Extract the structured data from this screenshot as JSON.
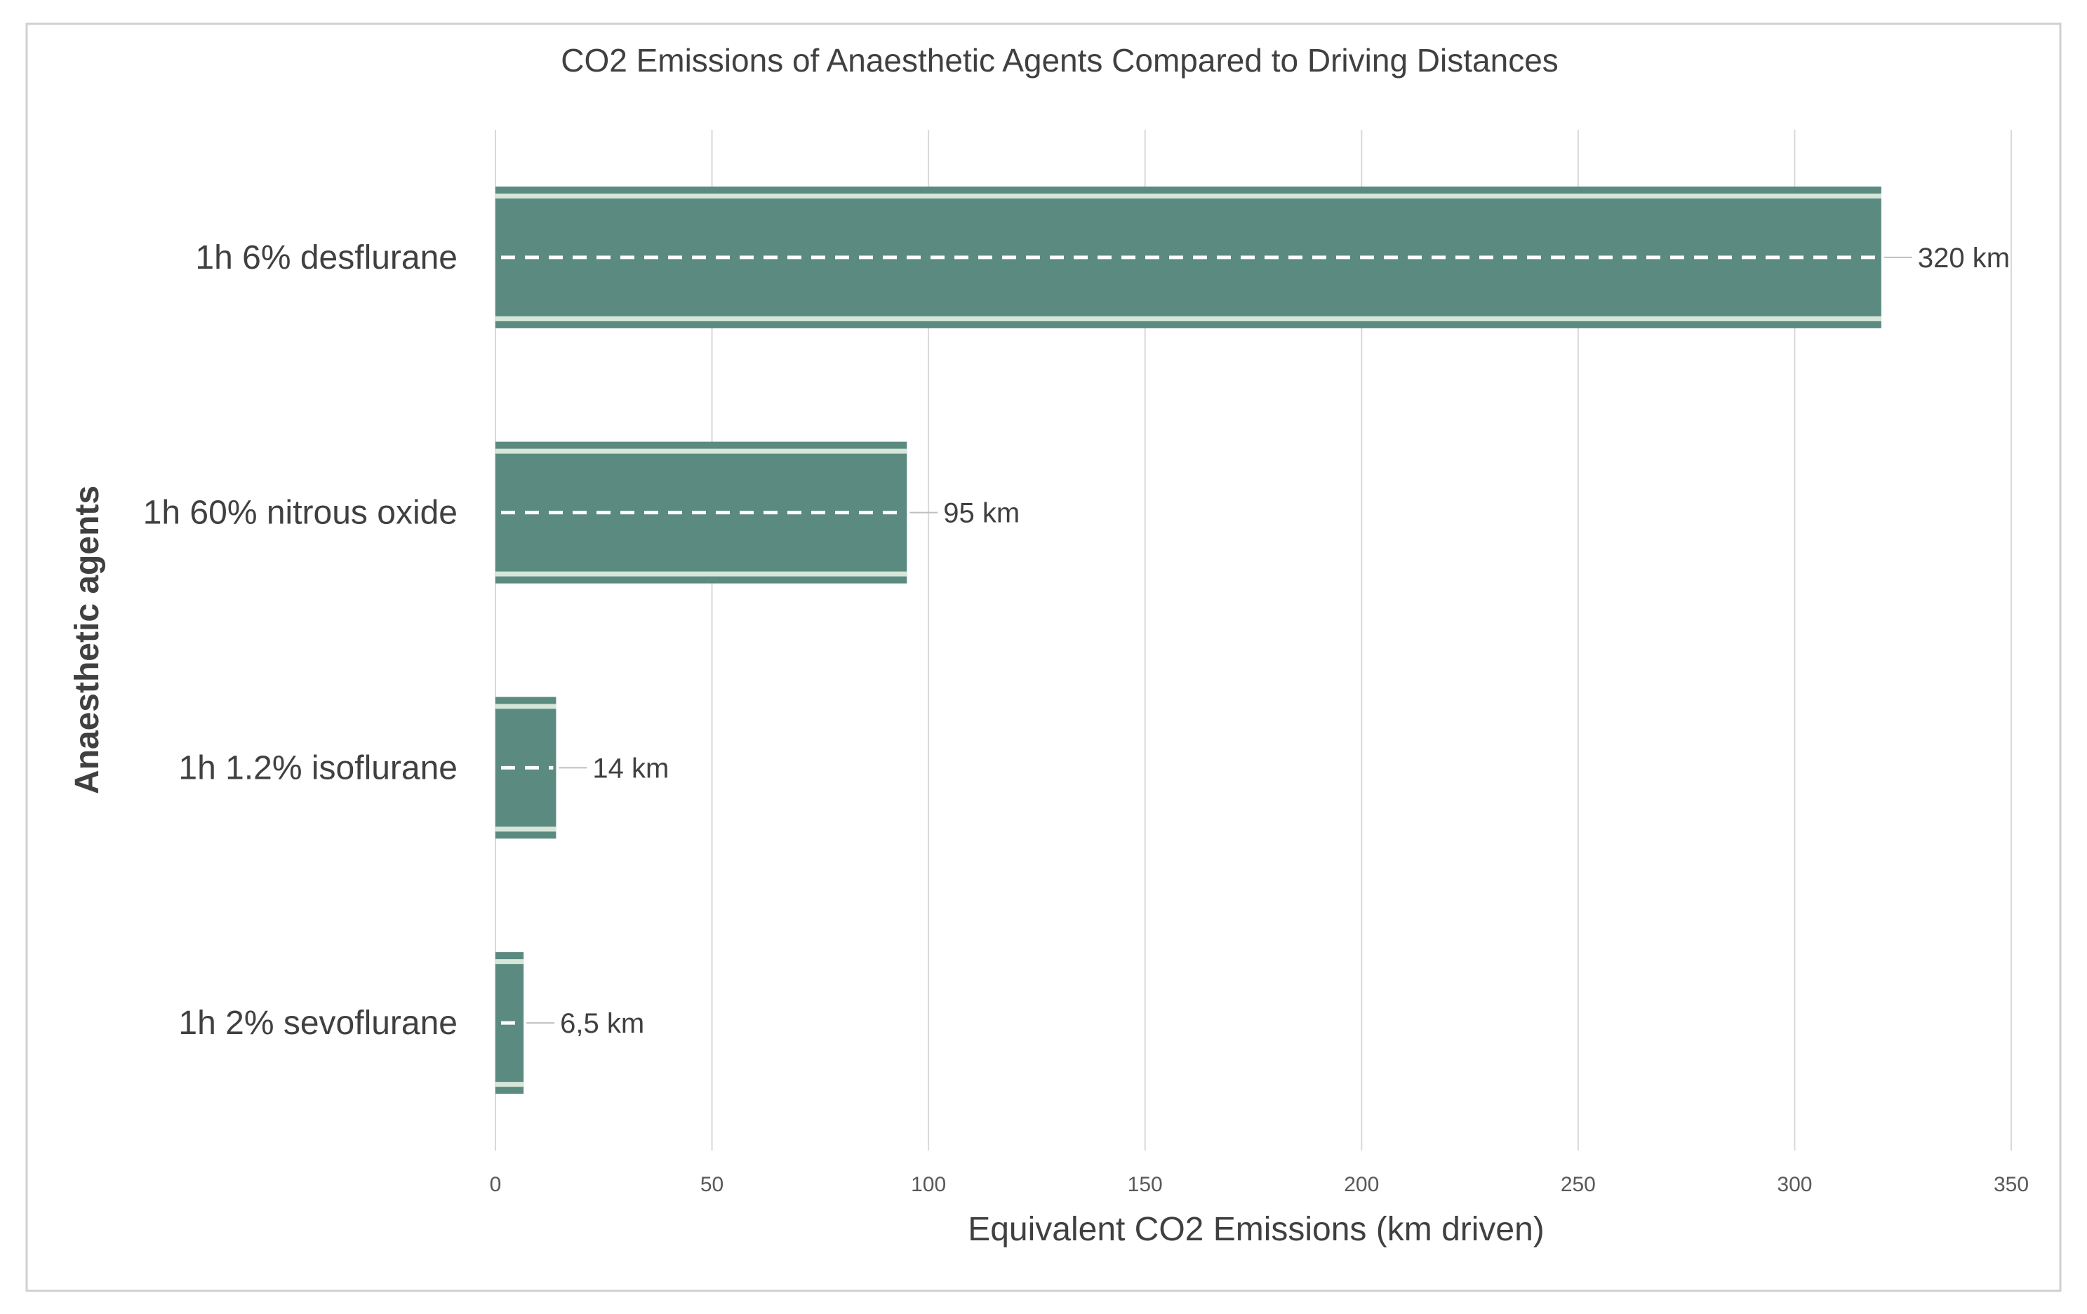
{
  "chart_data": {
    "type": "bar",
    "orientation": "horizontal",
    "title": "CO2 Emissions of Anaesthetic Agents Compared to Driving Distances",
    "xlabel": "Equivalent CO2 Emissions (km driven)",
    "ylabel": "Anaesthetic agents",
    "categories": [
      "1h 6% desflurane",
      "1h 60% nitrous oxide",
      "1h 1.2% isoflurane",
      "1h 2% sevoflurane"
    ],
    "values": [
      320,
      95,
      14,
      6.5
    ],
    "data_labels": [
      "320 km",
      "95 km",
      "14 km",
      "6,5 km"
    ],
    "xlim": [
      0,
      350
    ],
    "xticks": [
      0,
      50,
      100,
      150,
      200,
      250,
      300,
      350
    ],
    "xtick_labels": [
      "0",
      "50",
      "100",
      "150",
      "200",
      "250",
      "300",
      "350"
    ],
    "grid": "vertical",
    "legend": "none",
    "bar_style": "road with dashed center line",
    "colors": {
      "bar": "#5a8a80",
      "bar_edge": "#d6e6d9",
      "dash": "#ffffff",
      "grid": "#d9d9d9",
      "text": "#404040",
      "border": "#d0d0d0"
    }
  }
}
